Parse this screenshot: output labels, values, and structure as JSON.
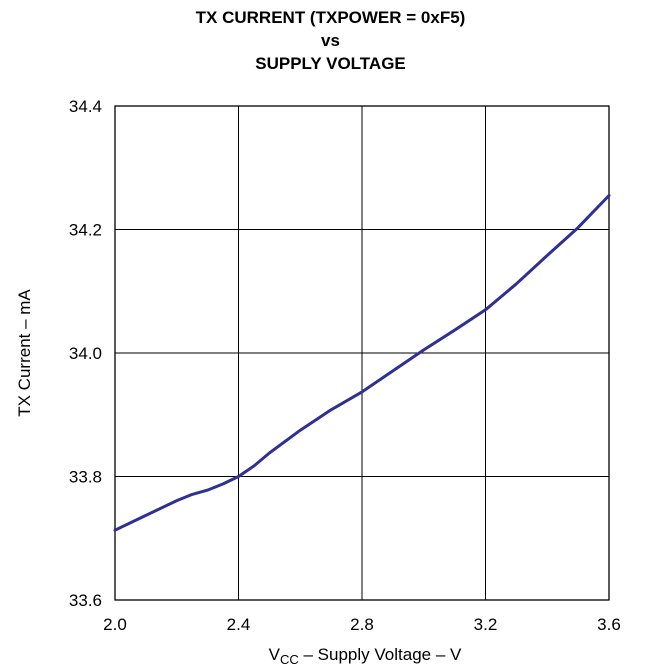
{
  "titles": [
    "TX CURRENT (TXPOWER = 0xF5)",
    "vs",
    "SUPPLY VOLTAGE"
  ],
  "chart_data": {
    "type": "line",
    "title": "TX CURRENT (TXPOWER = 0xF5) vs SUPPLY VOLTAGE",
    "xlabel": {
      "prefix": "V",
      "subscript": "CC",
      "suffix": " – Supply Voltage – V"
    },
    "ylabel": "TX Current – mA",
    "xlim": [
      2.0,
      3.6
    ],
    "ylim": [
      33.6,
      34.4
    ],
    "xticks": [
      "2.0",
      "2.4",
      "2.8",
      "3.2",
      "3.6"
    ],
    "yticks": [
      "33.6",
      "33.8",
      "34.0",
      "34.2",
      "34.4"
    ],
    "grid": true,
    "line_color": "#2e3192",
    "series": [
      {
        "x": [
          2.0,
          2.1,
          2.2,
          2.25,
          2.3,
          2.35,
          2.4,
          2.45,
          2.5,
          2.6,
          2.7,
          2.8,
          2.9,
          3.0,
          3.1,
          3.2,
          3.3,
          3.4,
          3.5,
          3.6
        ],
        "y": [
          33.713,
          33.737,
          33.761,
          33.771,
          33.778,
          33.788,
          33.8,
          33.817,
          33.838,
          33.875,
          33.908,
          33.937,
          33.971,
          34.005,
          34.037,
          34.07,
          34.112,
          34.158,
          34.203,
          34.255
        ]
      }
    ]
  }
}
